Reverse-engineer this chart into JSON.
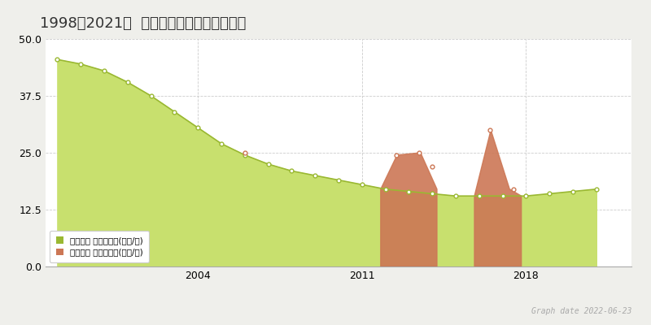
{
  "title": "1998～2021年  神戸市西区宮下の地価推移",
  "bg_color": "#efefeb",
  "plot_bg_color": "#ffffff",
  "ylim": [
    0,
    50
  ],
  "yticks": [
    0,
    12.5,
    25,
    37.5,
    50
  ],
  "xlim": [
    1997.5,
    2022.5
  ],
  "green_line_years": [
    1998,
    1999,
    2000,
    2001,
    2002,
    2003,
    2004,
    2005,
    2006,
    2007,
    2008,
    2009,
    2010,
    2011,
    2012,
    2013,
    2014,
    2015,
    2016,
    2017,
    2018,
    2019,
    2020,
    2021
  ],
  "green_line_values": [
    45.5,
    44.5,
    43.0,
    40.5,
    37.5,
    34.0,
    30.5,
    27.0,
    24.5,
    22.5,
    21.0,
    20.0,
    19.0,
    18.0,
    17.0,
    16.5,
    16.0,
    15.5,
    15.5,
    15.5,
    15.5,
    16.0,
    16.5,
    17.0
  ],
  "green_color": "#c8e06e",
  "green_line_color": "#9ab832",
  "orange_segments": [
    {
      "years": [
        2012,
        2012.9
      ],
      "values": [
        17.0,
        17.0
      ],
      "peak_year": 2012.45,
      "peak_val": 24.5
    },
    {
      "years": [
        2013.0,
        2013.9
      ],
      "values": [
        16.5,
        16.5
      ],
      "peak_year": 2013.45,
      "peak_val": 25.0
    },
    {
      "years": [
        2016.0,
        2016.9
      ],
      "values": [
        15.5,
        15.5
      ],
      "peak_year": 2016.45,
      "peak_val": 30.0
    },
    {
      "years": [
        2017.0,
        2017.9
      ],
      "values": [
        15.5,
        15.5
      ],
      "peak_year": 2017.45,
      "peak_val": 17.0
    }
  ],
  "orange_bar_year_ranges": [
    [
      2011.8,
      2012.9,
      17.0,
      24.5
    ],
    [
      2013.0,
      2014.1,
      16.5,
      25.0
    ],
    [
      2016.0,
      2016.9,
      15.5,
      30.0
    ],
    [
      2017.0,
      2017.8,
      15.5,
      17.0
    ]
  ],
  "orange_line_data": [
    [
      2006.0,
      25.0
    ],
    [
      2012.45,
      24.5
    ],
    [
      2013.45,
      25.0
    ],
    [
      2014.0,
      22.0
    ],
    [
      2016.45,
      30.0
    ],
    [
      2017.45,
      17.0
    ]
  ],
  "orange_fill_color": "#cc7755",
  "orange_line_color": "#cc7755",
  "grid_color": "#cccccc",
  "xtick_years": [
    2004,
    2011,
    2018
  ],
  "legend_label_green": "地価公示 平均坪単価(万円/坪)",
  "legend_label_orange": "取引価格 平均坪単価(万円/坪)",
  "graph_date_text": "Graph date 2022-06-23",
  "title_fontsize": 13,
  "axis_fontsize": 9
}
